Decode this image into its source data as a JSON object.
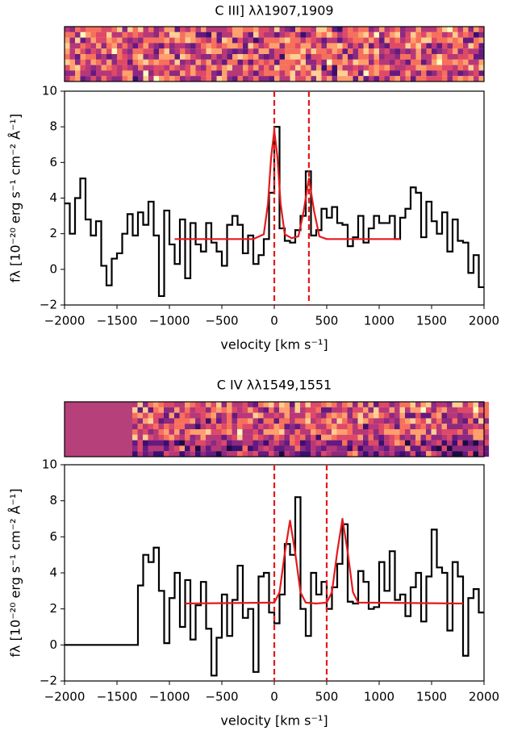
{
  "chart_data": [
    {
      "type": "line",
      "title": "C III] λλ1907,1909",
      "xlabel": "velocity [km s⁻¹]",
      "ylabel": "fλ [10⁻²⁰ erg s⁻¹ cm⁻² Å⁻¹]",
      "xlim": [
        -2000,
        2000
      ],
      "ylim": [
        -2,
        10
      ],
      "xticks": [
        {
          "value": -2000,
          "label": "−2000"
        },
        {
          "value": -1500,
          "label": "−1500"
        },
        {
          "value": -1000,
          "label": "−1000"
        },
        {
          "value": -500,
          "label": "−500"
        },
        0,
        500,
        1000,
        1500,
        2000
      ],
      "yticks": [
        {
          "value": -2,
          "label": "−2"
        },
        0,
        2,
        4,
        6,
        8,
        10
      ],
      "spectrum": {
        "color": "#000000",
        "x": [
          -2000,
          -1950,
          -1900,
          -1850,
          -1800,
          -1750,
          -1700,
          -1650,
          -1600,
          -1550,
          -1500,
          -1450,
          -1400,
          -1350,
          -1300,
          -1250,
          -1200,
          -1150,
          -1100,
          -1050,
          -1000,
          -950,
          -900,
          -850,
          -800,
          -750,
          -700,
          -650,
          -600,
          -550,
          -500,
          -450,
          -400,
          -350,
          -300,
          -250,
          -200,
          -150,
          -100,
          -50,
          0,
          50,
          100,
          150,
          200,
          250,
          300,
          350,
          400,
          450,
          500,
          550,
          600,
          650,
          700,
          750,
          800,
          850,
          900,
          950,
          1000,
          1050,
          1100,
          1150,
          1200,
          1250,
          1300,
          1350,
          1400,
          1450,
          1500,
          1550,
          1600,
          1650,
          1700,
          1750,
          1800,
          1850,
          1900,
          1950
        ],
        "values": [
          3.7,
          2.0,
          4.0,
          5.1,
          2.8,
          1.9,
          2.7,
          0.2,
          -0.9,
          0.6,
          0.9,
          2.0,
          3.1,
          1.9,
          3.2,
          2.5,
          3.8,
          1.9,
          -1.5,
          3.3,
          1.4,
          0.3,
          2.8,
          -0.5,
          2.6,
          1.4,
          1.0,
          2.6,
          1.5,
          1.0,
          0.2,
          2.5,
          3.0,
          2.5,
          0.9,
          1.9,
          0.3,
          0.8,
          1.7,
          4.3,
          8.0,
          2.3,
          1.6,
          1.5,
          2.2,
          3.0,
          5.5,
          1.9,
          2.2,
          3.4,
          2.9,
          3.5,
          2.6,
          2.5,
          1.3,
          1.8,
          3.0,
          1.5,
          2.3,
          3.0,
          2.6,
          2.6,
          3.0,
          1.7,
          2.9,
          3.4,
          4.6,
          4.3,
          1.8,
          3.8,
          2.7,
          2.0,
          3.2,
          1.0,
          2.8,
          1.6,
          1.5,
          -0.2,
          0.8,
          -1.0
        ]
      },
      "fit": {
        "color": "#e41a1c",
        "x": [
          -950,
          -200,
          -100,
          -60,
          -30,
          0,
          30,
          60,
          100,
          165,
          230,
          280,
          330,
          380,
          430,
          500,
          1200
        ],
        "values": [
          1.7,
          1.7,
          1.97,
          3.7,
          6.3,
          7.8,
          6.3,
          3.7,
          1.97,
          1.75,
          1.85,
          3.26,
          5.1,
          3.26,
          1.85,
          1.7,
          1.7
        ]
      },
      "vlines": [
        0,
        330
      ],
      "vline_color": "#e41a1c"
    },
    {
      "type": "line",
      "title": "C IV λλ1549,1551",
      "xlabel": "velocity [km s⁻¹]",
      "ylabel": "fλ [10⁻²⁰ erg s⁻¹ cm⁻² Å⁻¹]",
      "xlim": [
        -2000,
        2000
      ],
      "ylim": [
        -2,
        10
      ],
      "xticks": [
        {
          "value": -2000,
          "label": "−2000"
        },
        {
          "value": -1500,
          "label": "−1500"
        },
        {
          "value": -1000,
          "label": "−1000"
        },
        {
          "value": -500,
          "label": "−500"
        },
        0,
        500,
        1000,
        1500,
        2000
      ],
      "yticks": [
        {
          "value": -2,
          "label": "−2"
        },
        0,
        2,
        4,
        6,
        8,
        10
      ],
      "spectrum": {
        "color": "#000000",
        "x": [
          -2000,
          -1300,
          -1250,
          -1200,
          -1150,
          -1100,
          -1050,
          -1000,
          -950,
          -900,
          -850,
          -800,
          -750,
          -700,
          -650,
          -600,
          -550,
          -500,
          -450,
          -400,
          -350,
          -300,
          -250,
          -200,
          -150,
          -100,
          -50,
          0,
          50,
          100,
          150,
          200,
          250,
          300,
          350,
          400,
          450,
          500,
          550,
          600,
          650,
          700,
          750,
          800,
          850,
          900,
          950,
          1000,
          1050,
          1100,
          1150,
          1200,
          1250,
          1300,
          1350,
          1400,
          1450,
          1500,
          1550,
          1600,
          1650,
          1700,
          1750,
          1800,
          1850,
          1900,
          1950
        ],
        "values": [
          0,
          3.3,
          5.0,
          4.6,
          5.4,
          3.0,
          0.1,
          2.6,
          4.0,
          1.0,
          3.6,
          0.3,
          2.2,
          3.5,
          0.9,
          -1.7,
          0.4,
          2.8,
          0.5,
          2.5,
          4.4,
          1.5,
          2.0,
          -1.5,
          3.8,
          4.0,
          1.8,
          1.2,
          2.8,
          5.6,
          5.0,
          8.2,
          2.0,
          0.5,
          4.0,
          2.8,
          3.5,
          2.0,
          3.2,
          4.5,
          6.7,
          2.4,
          2.3,
          4.1,
          3.5,
          2.0,
          2.1,
          4.6,
          3.0,
          5.2,
          2.5,
          2.8,
          1.6,
          3.2,
          4.0,
          1.3,
          3.8,
          6.4,
          4.3,
          4.0,
          0.8,
          4.6,
          3.8,
          -0.6,
          2.6,
          3.1,
          1.8
        ]
      },
      "fit": {
        "color": "#e41a1c",
        "x": [
          -850,
          0,
          50,
          100,
          150,
          200,
          250,
          300,
          400,
          500,
          550,
          600,
          650,
          700,
          750,
          800,
          1800
        ],
        "values": [
          2.3,
          2.35,
          2.92,
          5.09,
          6.9,
          5.09,
          2.92,
          2.35,
          2.3,
          2.35,
          2.93,
          5.15,
          7.0,
          5.15,
          2.93,
          2.35,
          2.3
        ]
      },
      "vlines": [
        0,
        500
      ],
      "vline_color": "#e41a1c"
    }
  ]
}
